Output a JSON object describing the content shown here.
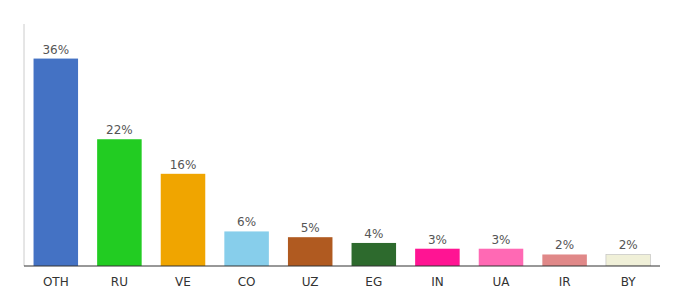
{
  "chart_data": {
    "type": "bar",
    "categories": [
      "OTH",
      "RU",
      "VE",
      "CO",
      "UZ",
      "EG",
      "IN",
      "UA",
      "IR",
      "BY"
    ],
    "values": [
      36,
      22,
      16,
      6,
      5,
      4,
      3,
      3,
      2,
      2
    ],
    "value_labels": [
      "36%",
      "22%",
      "16%",
      "6%",
      "5%",
      "4%",
      "3%",
      "3%",
      "2%",
      "2%"
    ],
    "colors": [
      "#4472c4",
      "#22cc22",
      "#f0a500",
      "#87ceeb",
      "#b05a20",
      "#2d6a2d",
      "#ff1493",
      "#ff69b4",
      "#e08888",
      "#f0f0d8"
    ],
    "ylim": [
      0,
      42
    ],
    "data_labels": true,
    "tick_labels": "x"
  }
}
